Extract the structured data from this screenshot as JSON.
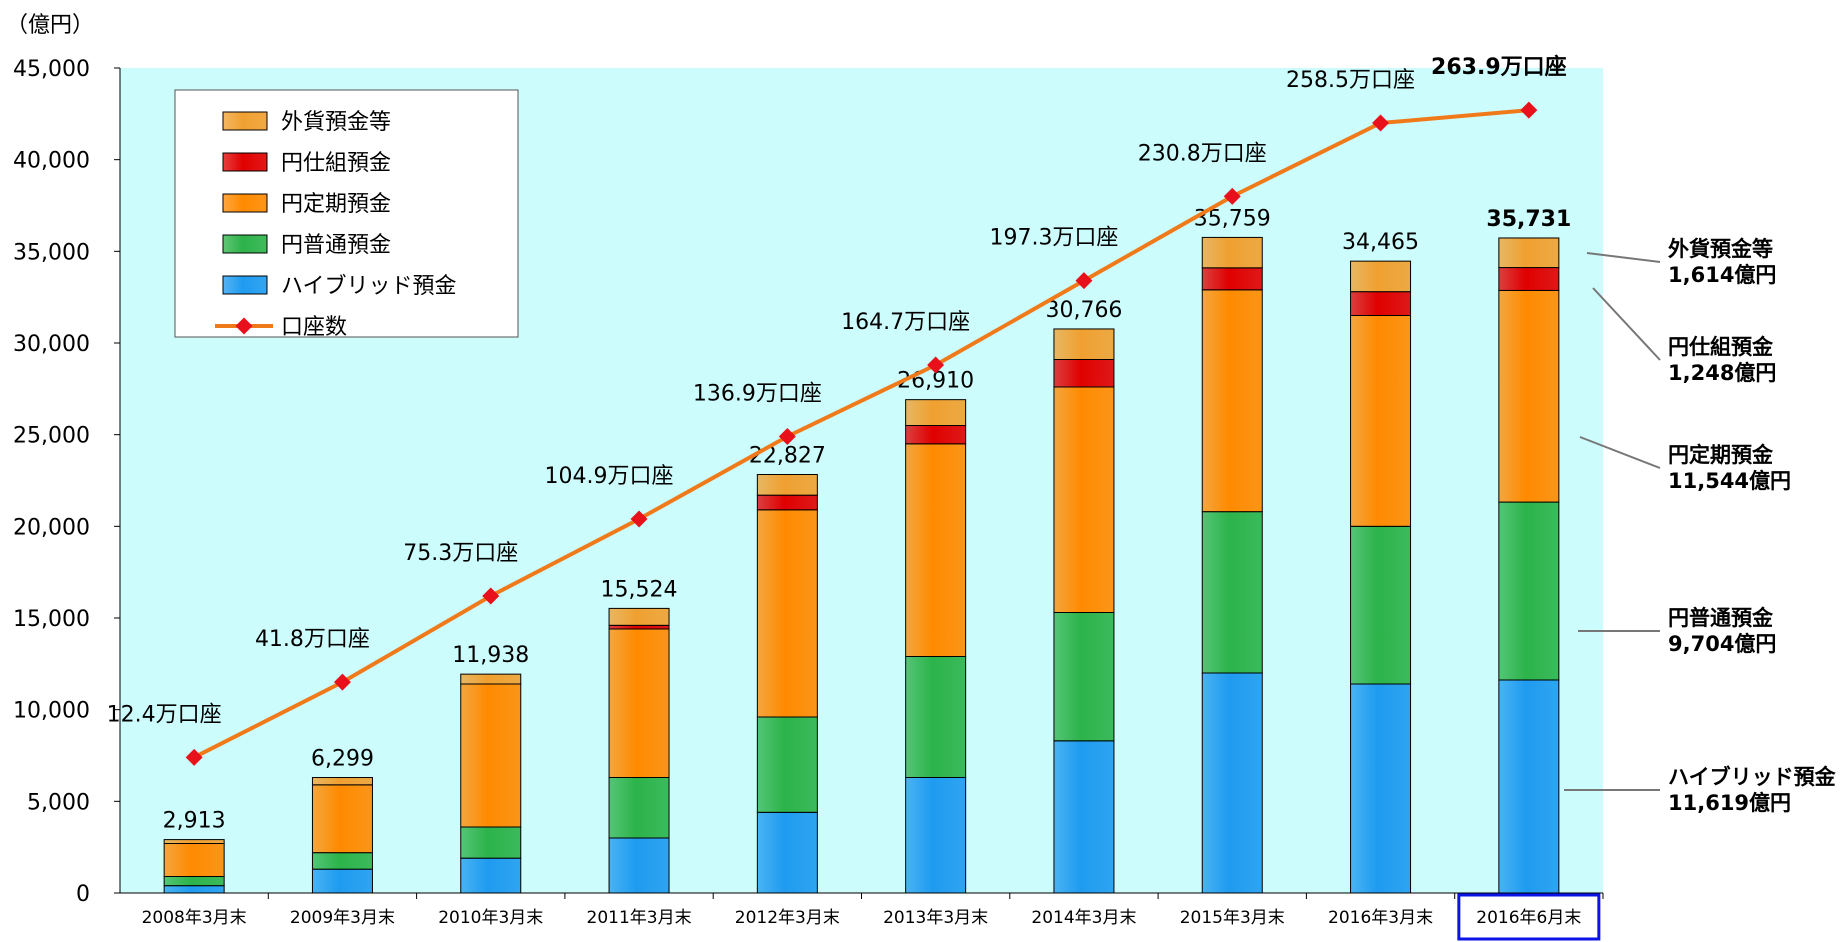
{
  "chart_data": {
    "type": "bar",
    "unit_label": "（億円）",
    "categories": [
      "2008年3月末",
      "2009年3月末",
      "2010年3月末",
      "2011年3月末",
      "2012年3月末",
      "2013年3月末",
      "2014年3月末",
      "2015年3月末",
      "2016年3月末",
      "2016年6月末"
    ],
    "highlighted_category": "2016年6月末",
    "ylim": [
      0,
      45000
    ],
    "yticks": [
      "0",
      "5,000",
      "10,000",
      "15,000",
      "20,000",
      "25,000",
      "30,000",
      "35,000",
      "40,000",
      "45,000"
    ],
    "ytick_values": [
      0,
      5000,
      10000,
      15000,
      20000,
      25000,
      30000,
      35000,
      40000,
      45000
    ],
    "series": [
      {
        "name": "ハイブリッド預金",
        "color": "#1e9bf0",
        "values": [
          400,
          1300,
          1900,
          3000,
          4400,
          6300,
          8300,
          12000,
          11400,
          11619
        ]
      },
      {
        "name": "円普通預金",
        "color": "#2cb34a",
        "values": [
          500,
          900,
          1700,
          3300,
          5200,
          6600,
          7000,
          8800,
          8600,
          9704
        ]
      },
      {
        "name": "円定期預金",
        "color": "#ff8a00",
        "values": [
          1800,
          3700,
          7800,
          8100,
          11300,
          11600,
          12300,
          12100,
          11500,
          11544
        ]
      },
      {
        "name": "円仕組預金",
        "color": "#e00000",
        "values": [
          0,
          0,
          0,
          200,
          800,
          1000,
          1500,
          1200,
          1300,
          1248
        ]
      },
      {
        "name": "外貨預金等",
        "color": "#f0a030",
        "values": [
          213,
          399,
          538,
          924,
          1127,
          1410,
          1666,
          1659,
          1665,
          1614
        ]
      }
    ],
    "totals": [
      "2,913",
      "6,299",
      "11,938",
      "15,524",
      "22,827",
      "26,910",
      "30,766",
      "35,759",
      "34,465",
      "35,731"
    ],
    "line": {
      "name": "口座数",
      "color": "#f07a1a",
      "marker_color": "#e8101a",
      "position_values": [
        7400,
        11500,
        16200,
        20400,
        24900,
        28800,
        33400,
        38000,
        42000,
        42700
      ],
      "labels": [
        "12.4万口座",
        "41.8万口座",
        "75.3万口座",
        "104.9万口座",
        "136.9万口座",
        "164.7万口座",
        "197.3万口座",
        "230.8万口座",
        "258.5万口座",
        "263.9万口座"
      ]
    },
    "legend": {
      "items": [
        {
          "name": "外貨預金等",
          "type": "bar"
        },
        {
          "name": "円仕組預金",
          "type": "bar"
        },
        {
          "name": "円定期預金",
          "type": "bar"
        },
        {
          "name": "円普通預金",
          "type": "bar"
        },
        {
          "name": "ハイブリッド預金",
          "type": "bar"
        },
        {
          "name": "口座数",
          "type": "line"
        }
      ],
      "placement": "top-left"
    },
    "annotations": [
      {
        "name": "外貨預金等",
        "value": "1,614億円"
      },
      {
        "name": "円仕組預金",
        "value": "1,248億円"
      },
      {
        "name": "円定期預金",
        "value": "11,544億円"
      },
      {
        "name": "円普通預金",
        "value": "9,704億円"
      },
      {
        "name": "ハイブリッド預金",
        "value": "11,619億円"
      }
    ],
    "plot_background": "#ccfcfc"
  }
}
